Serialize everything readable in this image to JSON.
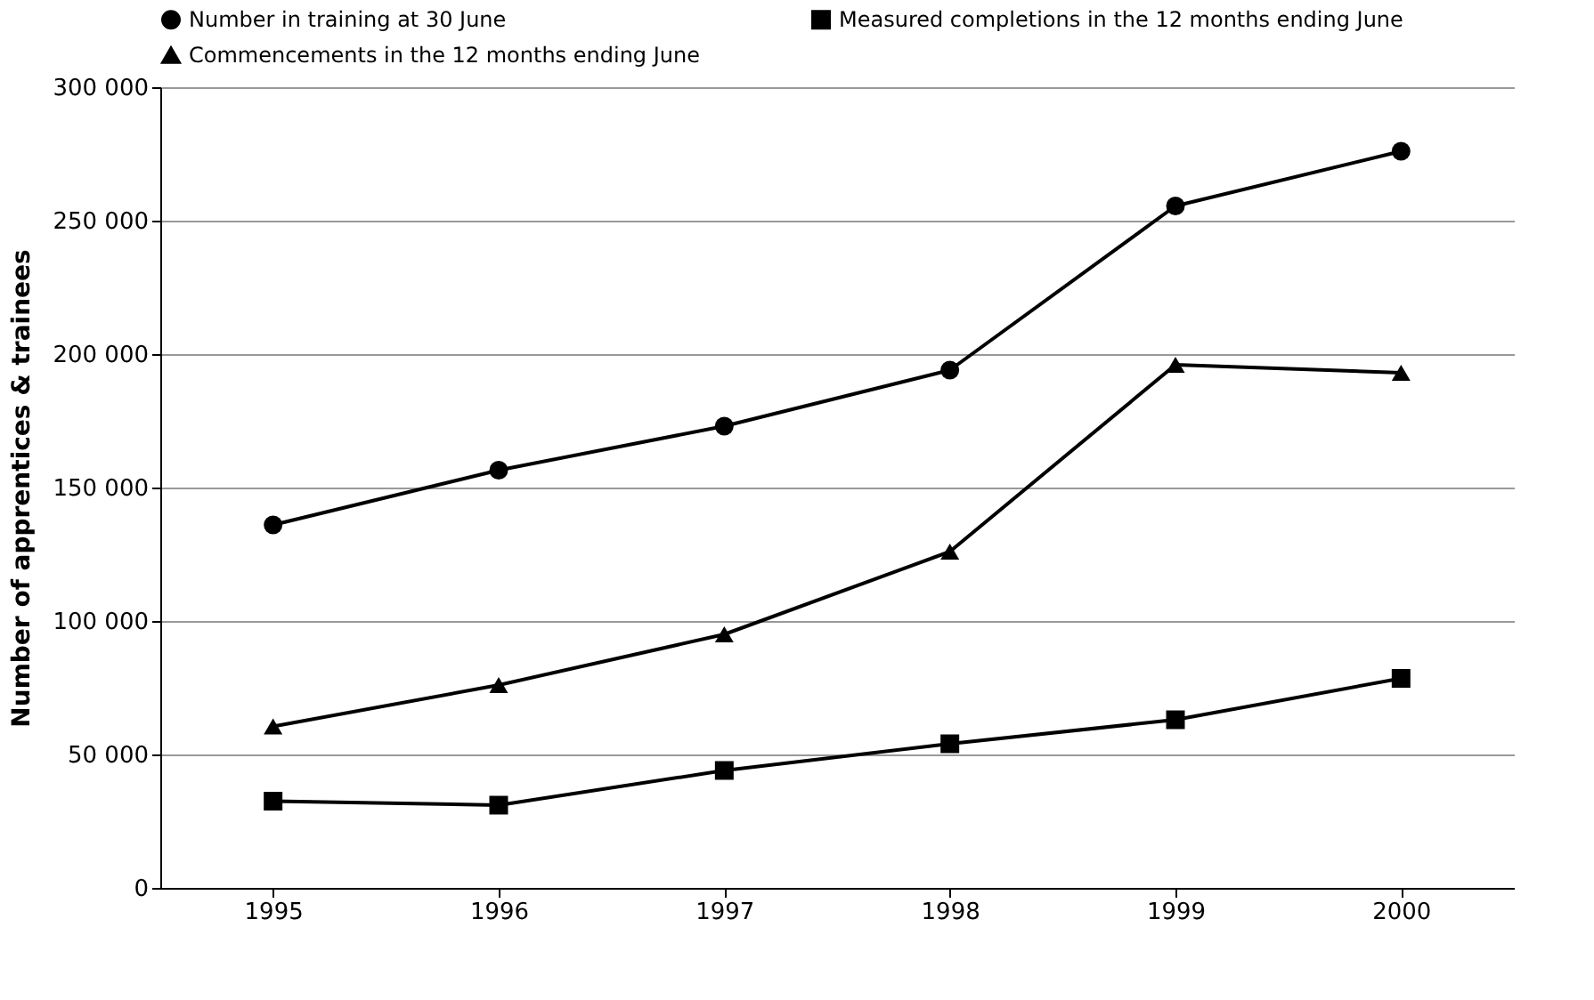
{
  "chart_data": {
    "type": "line",
    "ylabel": "Number of apprentices & trainees",
    "categories": [
      "1995",
      "1996",
      "1997",
      "1998",
      "1999",
      "2000"
    ],
    "series": [
      {
        "name": "Number in training at 30 June",
        "color": "#000000",
        "marker": "circle",
        "values": [
          136000,
          156500,
          173000,
          194000,
          255500,
          276000
        ]
      },
      {
        "name": "Commencements in the 12 months ending June",
        "color": "#000000",
        "marker": "triangle",
        "values": [
          60500,
          76000,
          95000,
          126000,
          196000,
          193000
        ]
      },
      {
        "name": "Measured completions in the 12 months ending June",
        "color": "#000000",
        "marker": "square",
        "values": [
          32500,
          31000,
          44000,
          54000,
          63000,
          78500
        ]
      }
    ],
    "ylim": [
      0,
      300000
    ],
    "yticks": [
      0,
      {
        "value": 50000,
        "label": "50 000"
      },
      {
        "value": 100000,
        "label": "100 000"
      },
      {
        "value": 150000,
        "label": "150 000"
      },
      {
        "value": 200000,
        "label": "200 000"
      },
      {
        "value": 250000,
        "label": "250 000"
      },
      {
        "value": 300000,
        "label": "300 000"
      }
    ],
    "grid": "y",
    "legend": "top",
    "line_style": "solid"
  }
}
